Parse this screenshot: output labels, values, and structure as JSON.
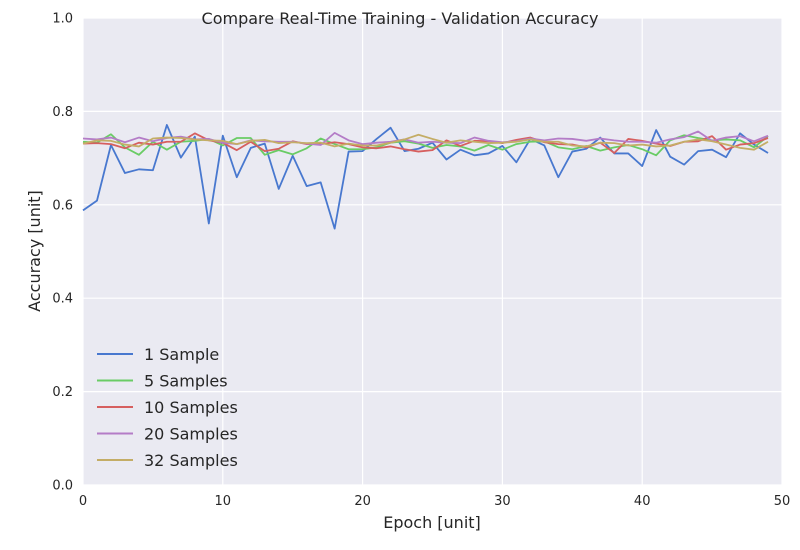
{
  "chart_data": {
    "type": "line",
    "title": "Compare Real-Time Training - Validation Accuracy",
    "xlabel": "Epoch [unit]",
    "ylabel": "Accuracy [unit]",
    "xlim": [
      0,
      50
    ],
    "ylim": [
      0.0,
      1.0
    ],
    "xticks": [
      0,
      10,
      20,
      30,
      40,
      50
    ],
    "yticks": [
      0.0,
      0.2,
      0.4,
      0.6,
      0.8,
      1.0
    ],
    "xtick_labels": [
      "0",
      "10",
      "20",
      "30",
      "40",
      "50"
    ],
    "ytick_labels": [
      "0.0",
      "0.2",
      "0.4",
      "0.6",
      "0.8",
      "1.0"
    ],
    "grid": true,
    "legend_position": "lower-left",
    "x": [
      0,
      1,
      2,
      3,
      4,
      5,
      6,
      7,
      8,
      9,
      10,
      11,
      12,
      13,
      14,
      15,
      16,
      17,
      18,
      19,
      20,
      21,
      22,
      23,
      24,
      25,
      26,
      27,
      28,
      29,
      30,
      31,
      32,
      33,
      34,
      35,
      36,
      37,
      38,
      39,
      40,
      41,
      42,
      43,
      44,
      45,
      46,
      47,
      48,
      49
    ],
    "series": [
      {
        "name": "1 Sample",
        "color": "#4878cf",
        "values": [
          0.588,
          0.609,
          0.728,
          0.668,
          0.676,
          0.674,
          0.771,
          0.701,
          0.746,
          0.56,
          0.748,
          0.659,
          0.722,
          0.731,
          0.634,
          0.705,
          0.64,
          0.648,
          0.549,
          0.714,
          0.715,
          0.741,
          0.765,
          0.715,
          0.72,
          0.733,
          0.697,
          0.718,
          0.706,
          0.71,
          0.726,
          0.691,
          0.741,
          0.727,
          0.659,
          0.714,
          0.72,
          0.744,
          0.71,
          0.71,
          0.683,
          0.76,
          0.703,
          0.686,
          0.715,
          0.718,
          0.702,
          0.753,
          0.729,
          0.711
        ]
      },
      {
        "name": "5 Samples",
        "color": "#6acc65",
        "values": [
          0.735,
          0.733,
          0.751,
          0.723,
          0.707,
          0.735,
          0.718,
          0.735,
          0.737,
          0.741,
          0.727,
          0.743,
          0.743,
          0.707,
          0.717,
          0.708,
          0.721,
          0.742,
          0.73,
          0.719,
          0.719,
          0.723,
          0.733,
          0.736,
          0.731,
          0.722,
          0.728,
          0.725,
          0.716,
          0.728,
          0.718,
          0.73,
          0.735,
          0.736,
          0.723,
          0.719,
          0.726,
          0.716,
          0.723,
          0.728,
          0.719,
          0.706,
          0.738,
          0.749,
          0.743,
          0.738,
          0.74,
          0.738,
          0.723,
          0.747
        ]
      },
      {
        "name": "10 Samples",
        "color": "#d65f5f",
        "values": [
          0.731,
          0.732,
          0.73,
          0.721,
          0.733,
          0.729,
          0.735,
          0.735,
          0.753,
          0.738,
          0.733,
          0.717,
          0.735,
          0.715,
          0.72,
          0.736,
          0.73,
          0.73,
          0.734,
          0.73,
          0.723,
          0.721,
          0.725,
          0.719,
          0.714,
          0.717,
          0.738,
          0.726,
          0.737,
          0.736,
          0.732,
          0.739,
          0.744,
          0.734,
          0.73,
          0.729,
          0.723,
          0.733,
          0.711,
          0.741,
          0.737,
          0.731,
          0.726,
          0.735,
          0.736,
          0.747,
          0.718,
          0.729,
          0.732,
          0.743
        ]
      },
      {
        "name": "20 Samples",
        "color": "#b47cc7",
        "values": [
          0.742,
          0.74,
          0.744,
          0.734,
          0.744,
          0.736,
          0.743,
          0.746,
          0.74,
          0.741,
          0.733,
          0.73,
          0.738,
          0.736,
          0.735,
          0.735,
          0.731,
          0.728,
          0.754,
          0.738,
          0.73,
          0.733,
          0.735,
          0.74,
          0.733,
          0.735,
          0.733,
          0.732,
          0.744,
          0.737,
          0.734,
          0.736,
          0.742,
          0.738,
          0.742,
          0.741,
          0.737,
          0.742,
          0.738,
          0.735,
          0.735,
          0.733,
          0.74,
          0.745,
          0.757,
          0.737,
          0.744,
          0.747,
          0.736,
          0.748
        ]
      },
      {
        "name": "32 Samples",
        "color": "#c4ad66",
        "values": [
          0.731,
          0.738,
          0.737,
          0.729,
          0.725,
          0.742,
          0.744,
          0.743,
          0.74,
          0.738,
          0.737,
          0.73,
          0.737,
          0.739,
          0.732,
          0.734,
          0.732,
          0.733,
          0.725,
          0.731,
          0.727,
          0.727,
          0.733,
          0.74,
          0.75,
          0.741,
          0.733,
          0.738,
          0.735,
          0.732,
          0.733,
          0.735,
          0.74,
          0.735,
          0.735,
          0.727,
          0.725,
          0.733,
          0.732,
          0.727,
          0.729,
          0.725,
          0.727,
          0.735,
          0.74,
          0.736,
          0.729,
          0.722,
          0.718,
          0.735
        ]
      }
    ]
  }
}
